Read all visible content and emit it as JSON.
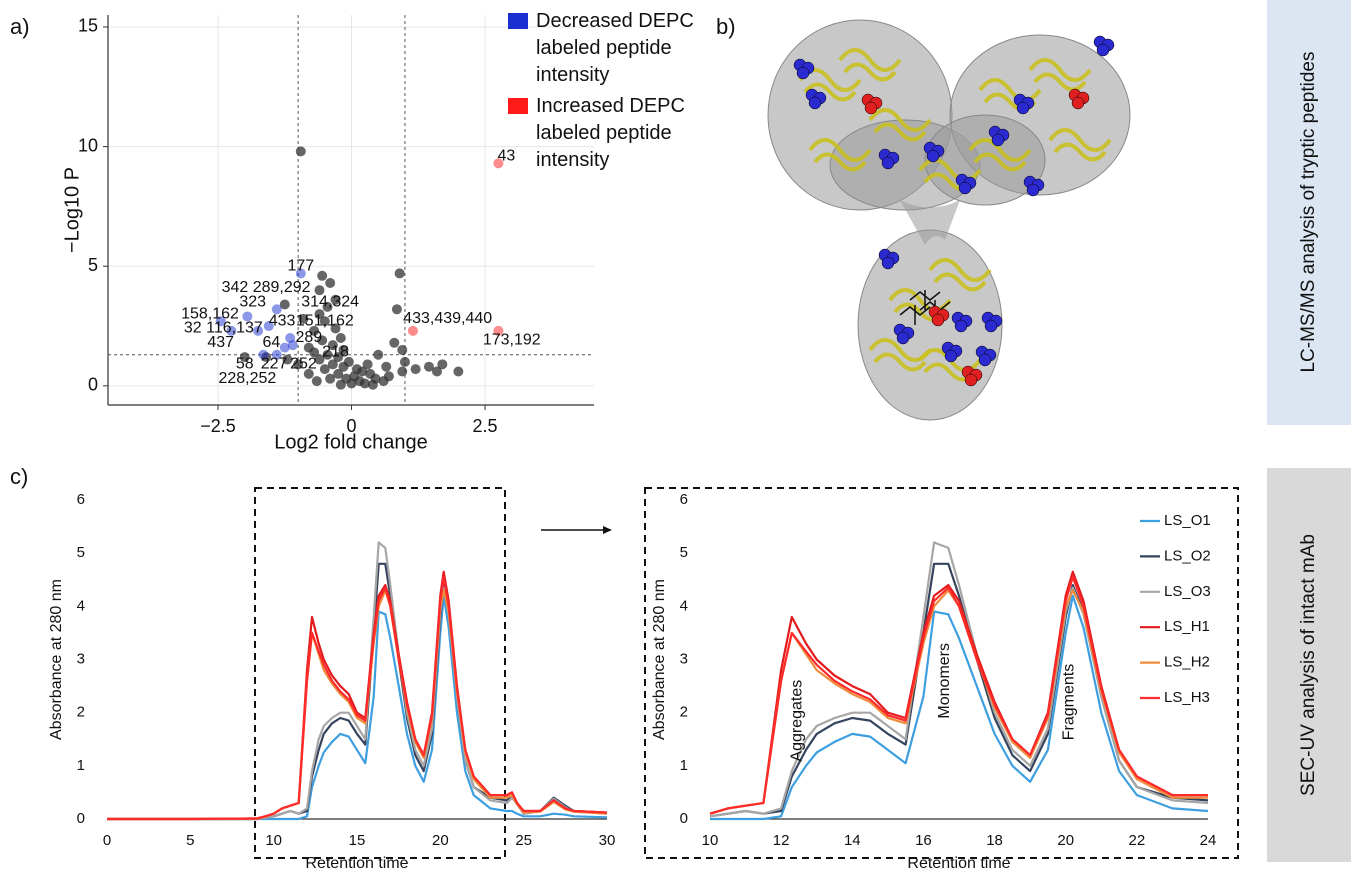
{
  "panels": {
    "a": "a)",
    "b": "b)",
    "c": "c)"
  },
  "side_labels": [
    "LC-MS/MS analysis of tryptic peptides",
    "SEC-UV analysis of intact mAb"
  ],
  "chart_data": [
    {
      "type": "scatter",
      "panel": "a)",
      "xlabel": "Log2 fold change",
      "ylabel": "−Log10 P",
      "xlim": [
        -4.56,
        4.54
      ],
      "ylim": [
        -0.8,
        15.5
      ],
      "xticks": [
        {
          "value": -2.5,
          "label": "−2.5"
        },
        0,
        2.5
      ],
      "yticks": [
        0,
        5,
        10,
        15
      ],
      "grid": true,
      "legend": "right",
      "thresholds": {
        "x": [
          -1,
          1
        ],
        "y": 1.3
      },
      "series": [
        {
          "color": "#333333",
          "x": [
            -0.95,
            -0.55,
            -0.4,
            -0.6,
            -0.3,
            -0.45,
            -0.6,
            -0.5,
            -0.3,
            -0.7,
            -0.2,
            -0.55,
            -0.35,
            -0.8,
            -0.15,
            -0.45,
            -0.25,
            -0.6,
            -0.05,
            -0.35,
            -0.15,
            0.1,
            -0.5,
            0.2,
            -0.25,
            0.05,
            0.35,
            -0.1,
            0.15,
            0.45,
            -0.4,
            0.0,
            0.25,
            0.6,
            0.3,
            0.5,
            0.65,
            0.8,
            0.85,
            0.9,
            0.95,
            1.0,
            0.95,
            1.2,
            1.45,
            1.6,
            1.7,
            2.0,
            -0.8,
            -1.0,
            -1.2,
            -1.6,
            -2.0,
            -0.9,
            -0.7,
            -1.25,
            0.7,
            -0.65,
            0.4,
            -0.2
          ],
          "values": [
            9.8,
            4.6,
            4.3,
            4.0,
            3.6,
            3.3,
            3.0,
            2.7,
            2.4,
            2.3,
            2.0,
            1.9,
            1.7,
            1.6,
            1.5,
            1.3,
            1.2,
            1.1,
            1.0,
            0.9,
            0.8,
            0.7,
            0.7,
            0.6,
            0.5,
            0.4,
            0.5,
            0.3,
            0.2,
            0.3,
            0.3,
            0.1,
            0.1,
            0.2,
            0.9,
            1.3,
            0.8,
            1.8,
            3.2,
            4.7,
            1.5,
            1.0,
            0.6,
            0.7,
            0.8,
            0.6,
            0.9,
            0.6,
            0.5,
            0.9,
            1.1,
            1.2,
            1.2,
            2.8,
            1.4,
            3.4,
            0.4,
            0.2,
            0.05,
            0.05
          ]
        },
        {
          "name": "Decreased DEPC labeled peptide intensity",
          "color": "#1a2fd0",
          "x": [
            -2.45,
            -2.25,
            -1.95,
            -1.75,
            -1.55,
            -1.4,
            -1.65,
            -1.4,
            -1.25,
            -1.1,
            -0.95,
            -1.15
          ],
          "values": [
            2.7,
            2.3,
            2.9,
            2.3,
            2.5,
            3.2,
            1.3,
            1.3,
            1.6,
            1.7,
            4.7,
            2.0
          ]
        },
        {
          "name": "Increased DEPC labeled peptide intensity",
          "color": "#ff1a1a",
          "x": [
            2.75,
            2.75,
            1.15
          ],
          "values": [
            9.3,
            2.3,
            2.3
          ]
        }
      ],
      "annotations": [
        {
          "text": "177",
          "x": -0.95,
          "y": 5.0
        },
        {
          "text": "342 289,292",
          "x": -1.6,
          "y": 4.1
        },
        {
          "text": "323",
          "x": -1.85,
          "y": 3.5
        },
        {
          "text": "314,324",
          "x": -0.4,
          "y": 3.5
        },
        {
          "text": "158,162",
          "x": -2.65,
          "y": 3.0
        },
        {
          "text": "433",
          "x": -1.3,
          "y": 2.7
        },
        {
          "text": "151,162",
          "x": -0.5,
          "y": 2.7
        },
        {
          "text": "32 116,137",
          "x": -2.4,
          "y": 2.4
        },
        {
          "text": "437",
          "x": -2.45,
          "y": 1.8
        },
        {
          "text": "64",
          "x": -1.5,
          "y": 1.8
        },
        {
          "text": "289",
          "x": -0.8,
          "y": 2.0
        },
        {
          "text": "218",
          "x": -0.3,
          "y": 1.4
        },
        {
          "text": "58",
          "x": -2.0,
          "y": 0.9
        },
        {
          "text": "227",
          "x": -1.45,
          "y": 0.9
        },
        {
          "text": "252",
          "x": -0.9,
          "y": 0.9
        },
        {
          "text": "228,252",
          "x": -1.95,
          "y": 0.3
        },
        {
          "text": "433,439,440",
          "x": 1.8,
          "y": 2.8
        },
        {
          "text": "173,192",
          "x": 3.0,
          "y": 1.9
        },
        {
          "text": "43",
          "x": 2.9,
          "y": 9.6
        }
      ]
    },
    {
      "type": "line",
      "panel": "c)",
      "xlabel": "Retention time",
      "ylabel": "Absorbance at 280 nm",
      "xlim": [
        0,
        30
      ],
      "ylim": [
        0,
        6
      ],
      "xticks": [
        0,
        5,
        10,
        15,
        20,
        25,
        30
      ],
      "yticks": [
        0,
        1,
        2,
        3,
        4,
        5,
        6
      ],
      "x": [
        0,
        5,
        9,
        9.5,
        10,
        10.5,
        11,
        11.5,
        12,
        12.3,
        12.7,
        13,
        13.5,
        14,
        14.5,
        15,
        15.5,
        16,
        16.3,
        16.7,
        17,
        17.5,
        18,
        18.5,
        19,
        19.5,
        20,
        20.2,
        20.5,
        21,
        21.5,
        22,
        23,
        24,
        24.3,
        24.6,
        25,
        26,
        26.8,
        27.5,
        28,
        30
      ],
      "series": [
        {
          "color": "#3d9ee0",
          "values": [
            0,
            0,
            0,
            0,
            0,
            0,
            0,
            0,
            0.05,
            0.6,
            1.0,
            1.25,
            1.45,
            1.6,
            1.55,
            1.3,
            1.05,
            2.3,
            3.9,
            3.85,
            3.4,
            2.5,
            1.6,
            1.0,
            0.7,
            1.3,
            3.5,
            4.2,
            3.6,
            2.0,
            0.9,
            0.45,
            0.2,
            0.15,
            0.15,
            0.1,
            0.05,
            0.05,
            0.1,
            0.08,
            0.05,
            0.03
          ]
        },
        {
          "color": "#34435e",
          "values": [
            0,
            0,
            0,
            0.02,
            0.05,
            0.1,
            0.15,
            0.1,
            0.15,
            0.8,
            1.3,
            1.6,
            1.8,
            1.9,
            1.85,
            1.6,
            1.4,
            3.5,
            4.8,
            4.8,
            4.2,
            3.0,
            1.9,
            1.2,
            0.9,
            1.6,
            3.8,
            4.4,
            3.9,
            2.3,
            1.1,
            0.6,
            0.4,
            0.35,
            0.45,
            0.3,
            0.1,
            0.15,
            0.4,
            0.25,
            0.15,
            0.12
          ]
        },
        {
          "color": "#a6a6a6",
          "values": [
            0,
            0,
            0,
            0.02,
            0.05,
            0.1,
            0.15,
            0.1,
            0.2,
            0.9,
            1.5,
            1.75,
            1.9,
            2.0,
            2.0,
            1.75,
            1.5,
            3.8,
            5.2,
            5.1,
            4.4,
            3.1,
            2.0,
            1.3,
            1.0,
            1.7,
            3.9,
            4.35,
            3.85,
            2.3,
            1.1,
            0.6,
            0.35,
            0.3,
            0.4,
            0.28,
            0.1,
            0.15,
            0.38,
            0.22,
            0.14,
            0.1
          ]
        },
        {
          "color": "#e31a1c",
          "values": [
            0,
            0,
            0.01,
            0.05,
            0.1,
            0.2,
            0.25,
            0.3,
            2.8,
            3.8,
            3.3,
            3.0,
            2.7,
            2.5,
            2.35,
            2.0,
            1.9,
            3.5,
            4.2,
            4.4,
            4.1,
            3.1,
            2.2,
            1.5,
            1.2,
            2.0,
            4.2,
            4.65,
            4.1,
            2.5,
            1.3,
            0.8,
            0.45,
            0.45,
            0.5,
            0.3,
            0.15,
            0.15,
            0.35,
            0.2,
            0.15,
            0.12
          ]
        },
        {
          "color": "#f08c3c",
          "values": [
            0,
            0,
            0.01,
            0.05,
            0.1,
            0.2,
            0.25,
            0.3,
            2.6,
            3.5,
            3.1,
            2.8,
            2.55,
            2.35,
            2.2,
            1.9,
            1.8,
            3.3,
            4.0,
            4.3,
            4.0,
            3.0,
            2.1,
            1.45,
            1.15,
            1.9,
            4.0,
            4.3,
            3.9,
            2.4,
            1.25,
            0.75,
            0.4,
            0.4,
            0.45,
            0.28,
            0.12,
            0.14,
            0.32,
            0.18,
            0.14,
            0.1
          ]
        },
        {
          "color": "#ff2a2a",
          "values": [
            0,
            0,
            0.01,
            0.05,
            0.1,
            0.2,
            0.25,
            0.3,
            2.6,
            3.5,
            3.15,
            2.9,
            2.6,
            2.4,
            2.25,
            1.95,
            1.85,
            3.4,
            4.1,
            4.35,
            4.0,
            3.0,
            2.15,
            1.5,
            1.2,
            1.95,
            4.1,
            4.55,
            4.0,
            2.45,
            1.3,
            0.8,
            0.45,
            0.45,
            0.5,
            0.3,
            0.15,
            0.15,
            0.35,
            0.2,
            0.15,
            0.12
          ]
        }
      ]
    },
    {
      "type": "line",
      "xlabel": "Retention time",
      "ylabel": "Absorbance at 280 nm",
      "xlim": [
        10,
        24
      ],
      "ylim": [
        0,
        6
      ],
      "xticks": [
        10,
        12,
        14,
        16,
        18,
        20,
        22,
        24
      ],
      "yticks": [
        0,
        1,
        2,
        3,
        4,
        5,
        6
      ],
      "legend": "right",
      "x": [
        10,
        10.5,
        11,
        11.5,
        12,
        12.3,
        12.7,
        13,
        13.5,
        14,
        14.5,
        15,
        15.5,
        16,
        16.3,
        16.7,
        17,
        17.5,
        18,
        18.5,
        19,
        19.5,
        20,
        20.2,
        20.5,
        21,
        21.5,
        22,
        23,
        24
      ],
      "series": [
        {
          "name": "LS_O1",
          "color": "#3d9ee0",
          "values": [
            0,
            0,
            0,
            0,
            0.05,
            0.6,
            1.0,
            1.25,
            1.45,
            1.6,
            1.55,
            1.3,
            1.05,
            2.3,
            3.9,
            3.85,
            3.4,
            2.5,
            1.6,
            1.0,
            0.7,
            1.3,
            3.5,
            4.2,
            3.6,
            2.0,
            0.9,
            0.45,
            0.2,
            0.15
          ]
        },
        {
          "name": "LS_O2",
          "color": "#34435e",
          "values": [
            0.05,
            0.1,
            0.15,
            0.1,
            0.15,
            0.8,
            1.3,
            1.6,
            1.8,
            1.9,
            1.85,
            1.6,
            1.4,
            3.5,
            4.8,
            4.8,
            4.2,
            3.0,
            1.9,
            1.2,
            0.9,
            1.6,
            3.8,
            4.4,
            3.9,
            2.3,
            1.1,
            0.6,
            0.4,
            0.35
          ]
        },
        {
          "name": "LS_O3",
          "color": "#a6a6a6",
          "values": [
            0.05,
            0.1,
            0.15,
            0.1,
            0.2,
            0.9,
            1.5,
            1.75,
            1.9,
            2.0,
            2.0,
            1.75,
            1.5,
            3.8,
            5.2,
            5.1,
            4.4,
            3.1,
            2.0,
            1.3,
            1.0,
            1.7,
            3.9,
            4.35,
            3.85,
            2.3,
            1.1,
            0.6,
            0.35,
            0.3
          ]
        },
        {
          "name": "LS_H1",
          "color": "#e31a1c",
          "values": [
            0.1,
            0.2,
            0.25,
            0.3,
            2.8,
            3.8,
            3.3,
            3.0,
            2.7,
            2.5,
            2.35,
            2.0,
            1.9,
            3.5,
            4.2,
            4.4,
            4.1,
            3.1,
            2.2,
            1.5,
            1.2,
            2.0,
            4.2,
            4.65,
            4.1,
            2.5,
            1.3,
            0.8,
            0.45,
            0.45
          ]
        },
        {
          "name": "LS_H2",
          "color": "#f08c3c",
          "values": [
            0.1,
            0.2,
            0.25,
            0.3,
            2.6,
            3.5,
            3.1,
            2.8,
            2.55,
            2.35,
            2.2,
            1.9,
            1.8,
            3.3,
            4.0,
            4.3,
            4.0,
            3.0,
            2.1,
            1.45,
            1.15,
            1.9,
            4.0,
            4.3,
            3.9,
            2.4,
            1.25,
            0.75,
            0.4,
            0.4
          ]
        },
        {
          "name": "LS_H3",
          "color": "#ff2a2a",
          "values": [
            0.1,
            0.2,
            0.25,
            0.3,
            2.6,
            3.5,
            3.15,
            2.9,
            2.6,
            2.4,
            2.25,
            1.95,
            1.85,
            3.4,
            4.1,
            4.35,
            4.0,
            3.0,
            2.15,
            1.5,
            1.2,
            1.95,
            4.1,
            4.55,
            4.0,
            2.45,
            1.3,
            0.8,
            0.45,
            0.45
          ]
        }
      ],
      "annotations": [
        {
          "text": "Aggregates",
          "x": 12.45,
          "y": 1.85
        },
        {
          "text": "Monomers",
          "x": 16.6,
          "y": 2.6
        },
        {
          "text": "Fragments",
          "x": 20.1,
          "y": 2.2
        }
      ]
    }
  ]
}
